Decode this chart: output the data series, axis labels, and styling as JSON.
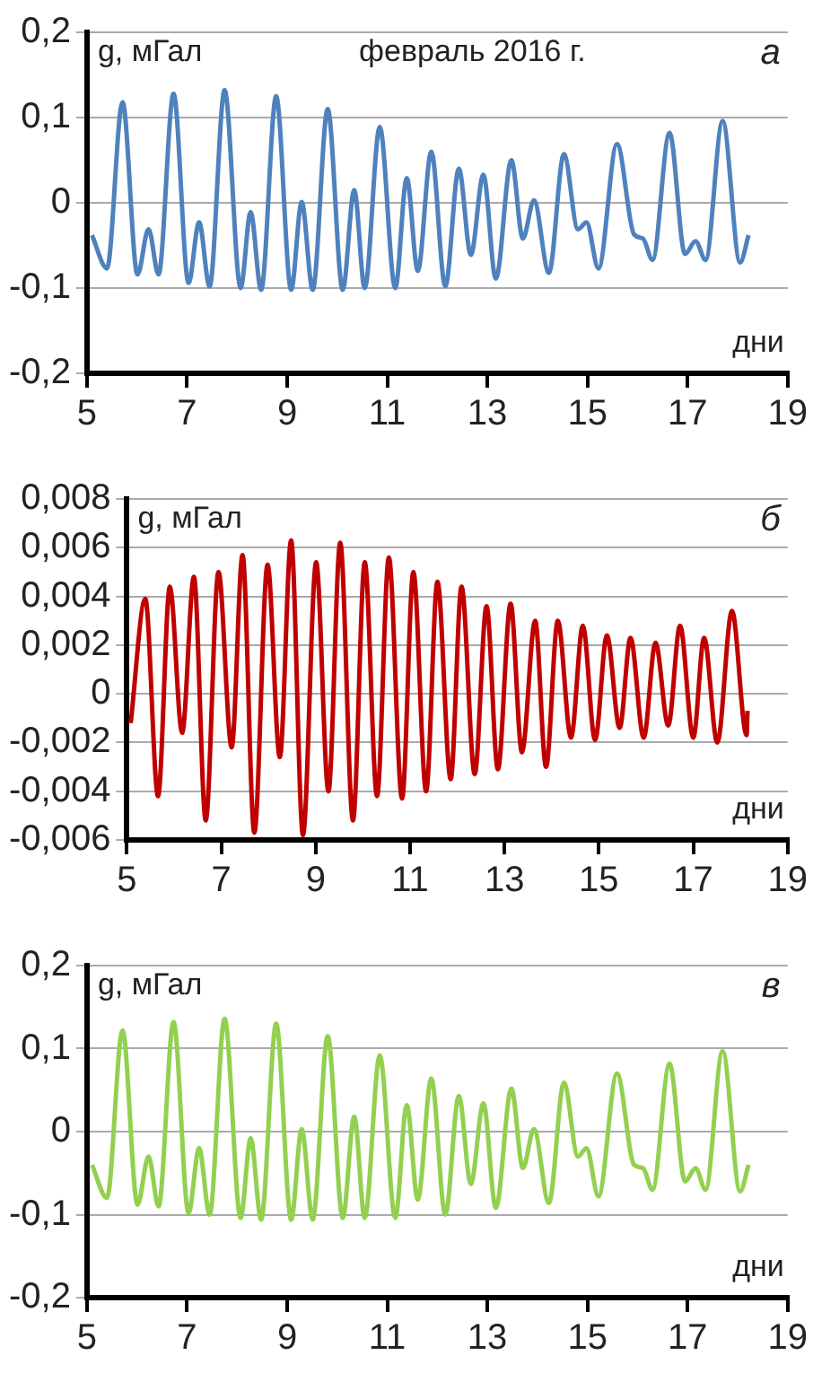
{
  "chart_data": [
    {
      "type": "line",
      "xlabel": "дни",
      "ylabel": "g, мГал",
      "annotations": [
        "февраль 2016 г.",
        "а"
      ],
      "grid": "y",
      "legend": false,
      "marker": "none",
      "line_style": "solid",
      "xlim": [
        5,
        19
      ],
      "xticks": [
        5,
        7,
        9,
        11,
        13,
        15,
        17,
        19
      ],
      "ylim": [
        -0.2,
        0.2
      ],
      "yticks": [
        {
          "value": -0.2,
          "label": "-0,2"
        },
        {
          "value": -0.1,
          "label": "-0,1"
        },
        {
          "value": 0,
          "label": "0"
        },
        {
          "value": 0.1,
          "label": "0,1"
        },
        {
          "value": 0.2,
          "label": "0,2"
        }
      ],
      "series": [
        {
          "color": "#4f81bd",
          "x": [
            5.1,
            5.4,
            5.71,
            6.01,
            6.23,
            6.43,
            6.73,
            7.03,
            7.24,
            7.45,
            7.75,
            8.07,
            8.27,
            8.48,
            8.78,
            9.08,
            9.29,
            9.51,
            9.81,
            10.11,
            10.34,
            10.55,
            10.85,
            11.16,
            11.39,
            11.61,
            11.88,
            12.16,
            12.43,
            12.67,
            12.92,
            13.17,
            13.48,
            13.71,
            13.93,
            14.23,
            14.53,
            14.81,
            14.98,
            15.22,
            15.59,
            15.93,
            16.11,
            16.3,
            16.64,
            16.95,
            17.16,
            17.36,
            17.7,
            18.05,
            18.22
          ],
          "values": [
            -0.038,
            -0.077,
            0.118,
            -0.084,
            -0.031,
            -0.084,
            0.128,
            -0.094,
            -0.023,
            -0.098,
            0.132,
            -0.1,
            -0.011,
            -0.102,
            0.125,
            -0.102,
            0.001,
            -0.102,
            0.11,
            -0.102,
            0.015,
            -0.1,
            0.089,
            -0.1,
            0.029,
            -0.08,
            0.06,
            -0.098,
            0.04,
            -0.061,
            0.033,
            -0.089,
            0.05,
            -0.042,
            0.003,
            -0.082,
            0.057,
            -0.031,
            -0.023,
            -0.077,
            0.069,
            -0.037,
            -0.042,
            -0.067,
            0.082,
            -0.06,
            -0.045,
            -0.067,
            0.096,
            -0.07,
            -0.038
          ]
        }
      ]
    },
    {
      "type": "line",
      "xlabel": "дни",
      "ylabel": "g, мГал",
      "annotations": [
        "б"
      ],
      "grid": "y",
      "legend": false,
      "marker": "none",
      "line_style": "solid",
      "xlim": [
        5,
        19
      ],
      "xticks": [
        5,
        7,
        9,
        11,
        13,
        15,
        17,
        19
      ],
      "ylim": [
        -0.006,
        0.008
      ],
      "yticks": [
        {
          "value": -0.006,
          "label": "-0,006"
        },
        {
          "value": -0.004,
          "label": "-0,004"
        },
        {
          "value": -0.002,
          "label": "-0,002"
        },
        {
          "value": 0,
          "label": "0"
        },
        {
          "value": 0.002,
          "label": "0,002"
        },
        {
          "value": 0.004,
          "label": "0,004"
        },
        {
          "value": 0.006,
          "label": "0,006"
        },
        {
          "value": 0.008,
          "label": "0,008"
        }
      ],
      "series": [
        {
          "color": "#c00000",
          "x": [
            5.08,
            5.39,
            5.66,
            5.91,
            6.17,
            6.42,
            6.67,
            6.94,
            7.22,
            7.45,
            7.7,
            7.98,
            8.24,
            8.48,
            8.73,
            9.01,
            9.27,
            9.52,
            9.79,
            10.04,
            10.3,
            10.55,
            10.83,
            11.07,
            11.34,
            11.58,
            11.86,
            12.09,
            12.37,
            12.62,
            12.86,
            13.13,
            13.37,
            13.65,
            13.88,
            14.13,
            14.41,
            14.66,
            14.92,
            15.17,
            15.44,
            15.67,
            15.95,
            16.2,
            16.47,
            16.72,
            17.0,
            17.23,
            17.51,
            17.82,
            18.13,
            18.15
          ],
          "values": [
            -0.0012,
            0.0039,
            -0.0042,
            0.0044,
            -0.0016,
            0.0048,
            -0.0052,
            0.005,
            -0.0022,
            0.0057,
            -0.0057,
            0.0053,
            -0.0026,
            0.0063,
            -0.0058,
            0.0054,
            -0.004,
            0.0062,
            -0.0052,
            0.0054,
            -0.0042,
            0.0056,
            -0.0043,
            0.005,
            -0.004,
            0.0046,
            -0.0035,
            0.0044,
            -0.0033,
            0.0036,
            -0.0031,
            0.0037,
            -0.0024,
            0.003,
            -0.003,
            0.003,
            -0.0018,
            0.0028,
            -0.0019,
            0.0024,
            -0.0014,
            0.0023,
            -0.0018,
            0.0021,
            -0.0013,
            0.0028,
            -0.0018,
            0.0023,
            -0.002,
            0.0034,
            -0.0017,
            -0.0007
          ]
        }
      ]
    },
    {
      "type": "line",
      "xlabel": "дни",
      "ylabel": "g, мГал",
      "annotations": [
        "в"
      ],
      "grid": "y",
      "legend": false,
      "marker": "none",
      "line_style": "solid",
      "xlim": [
        5,
        19
      ],
      "xticks": [
        5,
        7,
        9,
        11,
        13,
        15,
        17,
        19
      ],
      "ylim": [
        -0.2,
        0.2
      ],
      "yticks": [
        {
          "value": -0.2,
          "label": "-0,2"
        },
        {
          "value": -0.1,
          "label": "-0,1"
        },
        {
          "value": 0,
          "label": "0"
        },
        {
          "value": 0.1,
          "label": "0,1"
        },
        {
          "value": 0.2,
          "label": "0,2"
        }
      ],
      "series": [
        {
          "color": "#92d050",
          "x": [
            5.1,
            5.4,
            5.71,
            6.01,
            6.23,
            6.43,
            6.73,
            7.03,
            7.24,
            7.45,
            7.75,
            8.07,
            8.27,
            8.48,
            8.78,
            9.08,
            9.29,
            9.51,
            9.81,
            10.11,
            10.34,
            10.55,
            10.85,
            11.16,
            11.39,
            11.61,
            11.88,
            12.16,
            12.43,
            12.67,
            12.92,
            13.17,
            13.48,
            13.71,
            13.93,
            14.23,
            14.53,
            14.81,
            14.98,
            15.22,
            15.59,
            15.93,
            16.11,
            16.3,
            16.64,
            16.95,
            17.16,
            17.36,
            17.7,
            18.05,
            18.22
          ],
          "values": [
            -0.04,
            -0.08,
            0.122,
            -0.088,
            -0.03,
            -0.09,
            0.132,
            -0.098,
            -0.02,
            -0.1,
            0.136,
            -0.104,
            -0.008,
            -0.106,
            0.13,
            -0.106,
            0.003,
            -0.106,
            0.115,
            -0.104,
            0.018,
            -0.104,
            0.092,
            -0.104,
            0.032,
            -0.082,
            0.064,
            -0.1,
            0.043,
            -0.063,
            0.034,
            -0.092,
            0.052,
            -0.044,
            0.003,
            -0.086,
            0.059,
            -0.03,
            -0.02,
            -0.078,
            0.07,
            -0.04,
            -0.044,
            -0.07,
            0.082,
            -0.06,
            -0.044,
            -0.07,
            0.097,
            -0.072,
            -0.04
          ]
        }
      ]
    }
  ]
}
